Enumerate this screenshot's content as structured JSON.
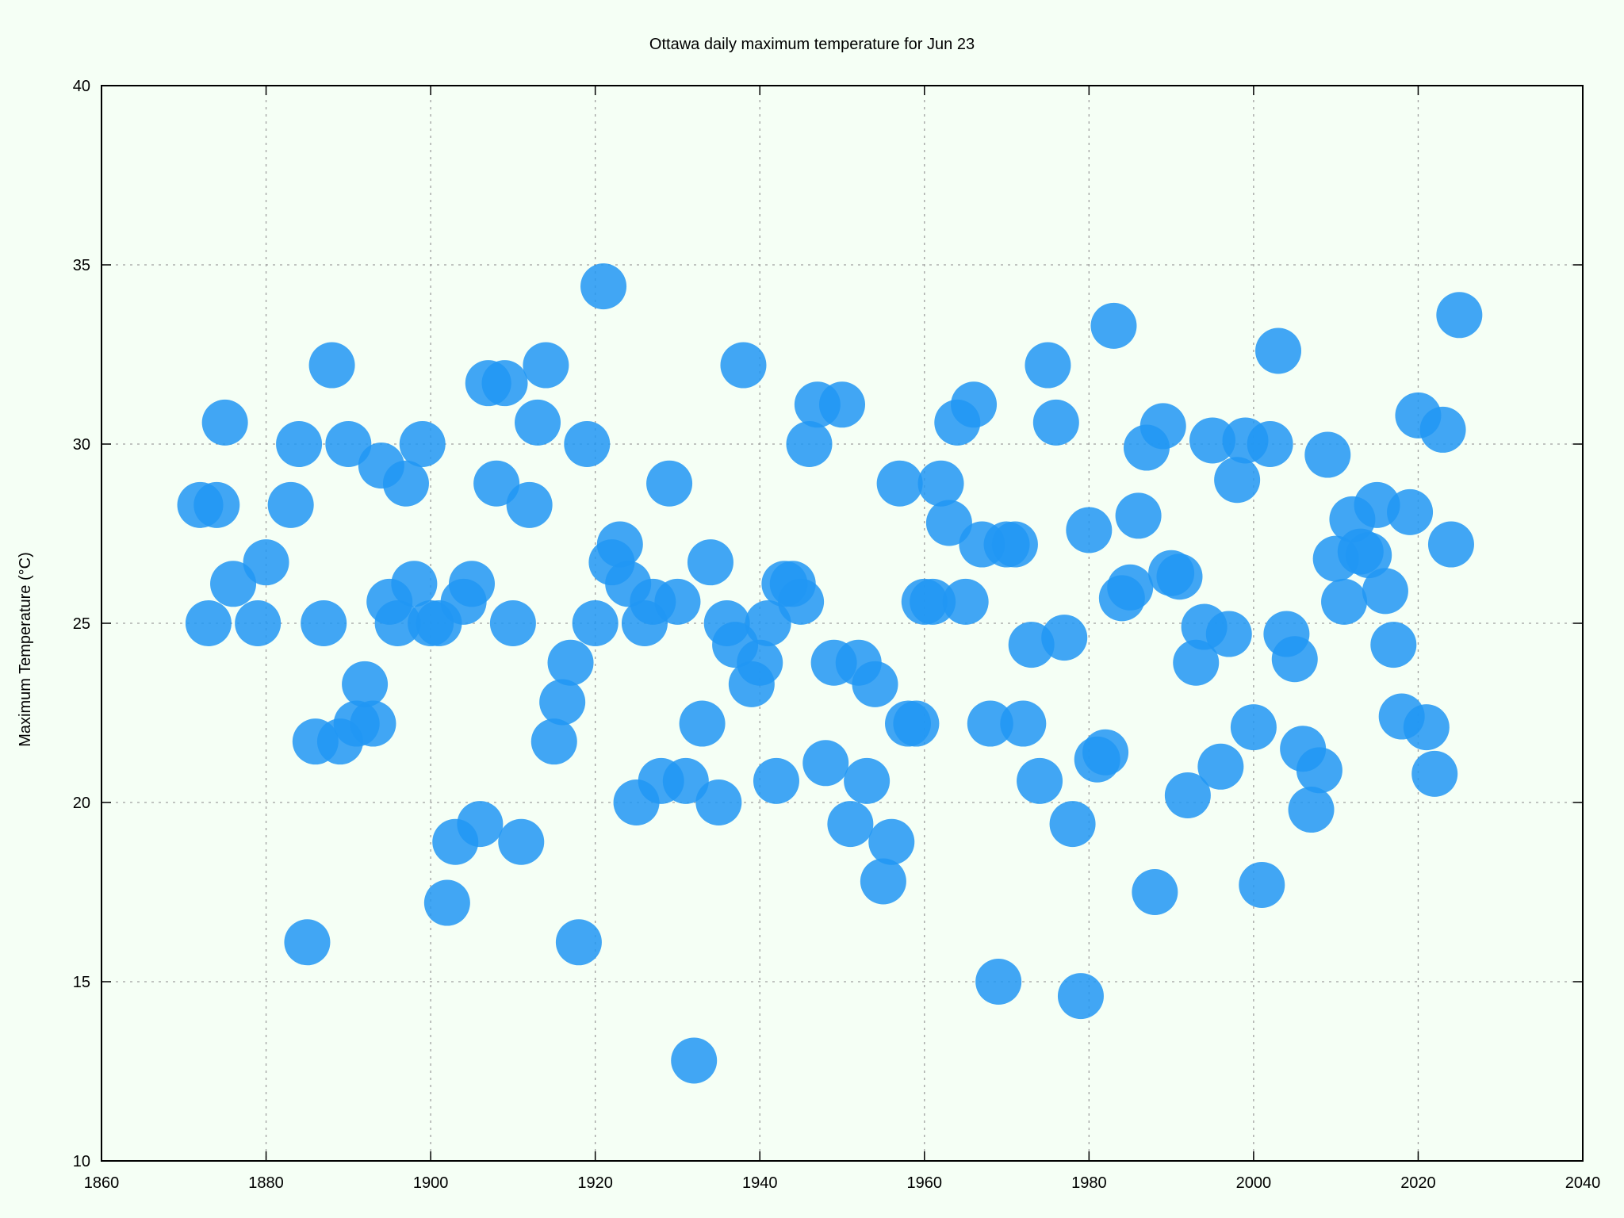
{
  "chart_data": {
    "type": "scatter",
    "title": "Ottawa daily maximum temperature for Jun 23",
    "xlabel": "",
    "ylabel": "Maximum Temperature (°C)",
    "xlim": [
      1860,
      2040
    ],
    "ylim": [
      10,
      40
    ],
    "x_ticks": [
      "1860",
      "1880",
      "1900",
      "1920",
      "1940",
      "1960",
      "1980",
      "2000",
      "2020",
      "2040"
    ],
    "y_ticks": [
      "10",
      "15",
      "20",
      "25",
      "30",
      "35",
      "40"
    ],
    "grid": true,
    "marker_color": "#2196f3",
    "points": [
      [
        1872,
        28.3
      ],
      [
        1873,
        25.0
      ],
      [
        1874,
        28.3
      ],
      [
        1875,
        30.6
      ],
      [
        1876,
        26.1
      ],
      [
        1879,
        25.0
      ],
      [
        1880,
        26.7
      ],
      [
        1883,
        28.3
      ],
      [
        1884,
        30.0
      ],
      [
        1885,
        16.1
      ],
      [
        1886,
        21.7
      ],
      [
        1887,
        25.0
      ],
      [
        1888,
        32.2
      ],
      [
        1889,
        21.7
      ],
      [
        1890,
        30.0
      ],
      [
        1891,
        22.2
      ],
      [
        1892,
        23.3
      ],
      [
        1893,
        22.2
      ],
      [
        1894,
        29.4
      ],
      [
        1895,
        25.6
      ],
      [
        1896,
        25.0
      ],
      [
        1897,
        28.9
      ],
      [
        1898,
        26.1
      ],
      [
        1899,
        30.0
      ],
      [
        1900,
        25.0
      ],
      [
        1901,
        25.0
      ],
      [
        1902,
        17.2
      ],
      [
        1903,
        18.9
      ],
      [
        1904,
        25.6
      ],
      [
        1905,
        26.1
      ],
      [
        1906,
        19.4
      ],
      [
        1907,
        31.7
      ],
      [
        1908,
        28.9
      ],
      [
        1909,
        31.7
      ],
      [
        1910,
        25.0
      ],
      [
        1911,
        18.9
      ],
      [
        1912,
        28.3
      ],
      [
        1913,
        30.6
      ],
      [
        1914,
        32.2
      ],
      [
        1915,
        21.7
      ],
      [
        1916,
        22.8
      ],
      [
        1917,
        23.9
      ],
      [
        1918,
        16.1
      ],
      [
        1919,
        30.0
      ],
      [
        1920,
        25.0
      ],
      [
        1921,
        34.4
      ],
      [
        1922,
        26.7
      ],
      [
        1923,
        27.2
      ],
      [
        1924,
        26.1
      ],
      [
        1925,
        20.0
      ],
      [
        1926,
        25.0
      ],
      [
        1927,
        25.6
      ],
      [
        1928,
        20.6
      ],
      [
        1929,
        28.9
      ],
      [
        1930,
        25.6
      ],
      [
        1931,
        20.6
      ],
      [
        1932,
        12.8
      ],
      [
        1933,
        22.2
      ],
      [
        1934,
        26.7
      ],
      [
        1935,
        20.0
      ],
      [
        1936,
        25.0
      ],
      [
        1937,
        24.4
      ],
      [
        1938,
        32.2
      ],
      [
        1939,
        23.3
      ],
      [
        1940,
        23.9
      ],
      [
        1941,
        25.0
      ],
      [
        1942,
        20.6
      ],
      [
        1943,
        26.1
      ],
      [
        1944,
        26.1
      ],
      [
        1945,
        25.6
      ],
      [
        1946,
        30.0
      ],
      [
        1947,
        31.1
      ],
      [
        1948,
        21.1
      ],
      [
        1949,
        23.9
      ],
      [
        1950,
        31.1
      ],
      [
        1951,
        19.4
      ],
      [
        1952,
        23.9
      ],
      [
        1953,
        20.6
      ],
      [
        1954,
        23.3
      ],
      [
        1955,
        17.8
      ],
      [
        1956,
        18.9
      ],
      [
        1957,
        28.9
      ],
      [
        1958,
        22.2
      ],
      [
        1959,
        22.2
      ],
      [
        1960,
        25.6
      ],
      [
        1961,
        25.6
      ],
      [
        1962,
        28.9
      ],
      [
        1963,
        27.8
      ],
      [
        1964,
        30.6
      ],
      [
        1965,
        25.6
      ],
      [
        1966,
        31.1
      ],
      [
        1967,
        27.2
      ],
      [
        1968,
        22.2
      ],
      [
        1969,
        15.0
      ],
      [
        1970,
        27.2
      ],
      [
        1971,
        27.2
      ],
      [
        1972,
        22.2
      ],
      [
        1973,
        24.4
      ],
      [
        1974,
        20.6
      ],
      [
        1975,
        32.2
      ],
      [
        1976,
        30.6
      ],
      [
        1977,
        24.6
      ],
      [
        1978,
        19.4
      ],
      [
        1979,
        14.6
      ],
      [
        1980,
        27.6
      ],
      [
        1981,
        21.2
      ],
      [
        1982,
        21.4
      ],
      [
        1983,
        33.3
      ],
      [
        1984,
        25.7
      ],
      [
        1985,
        26.0
      ],
      [
        1986,
        28.0
      ],
      [
        1987,
        29.9
      ],
      [
        1988,
        17.5
      ],
      [
        1989,
        30.5
      ],
      [
        1990,
        26.4
      ],
      [
        1991,
        26.3
      ],
      [
        1992,
        20.2
      ],
      [
        1993,
        23.9
      ],
      [
        1994,
        24.9
      ],
      [
        1995,
        30.1
      ],
      [
        1996,
        21.0
      ],
      [
        1997,
        24.7
      ],
      [
        1998,
        29.0
      ],
      [
        1999,
        30.1
      ],
      [
        2000,
        22.1
      ],
      [
        2001,
        17.7
      ],
      [
        2002,
        30.0
      ],
      [
        2003,
        32.6
      ],
      [
        2004,
        24.7
      ],
      [
        2005,
        24.0
      ],
      [
        2006,
        21.5
      ],
      [
        2007,
        19.8
      ],
      [
        2008,
        20.9
      ],
      [
        2009,
        29.7
      ],
      [
        2010,
        26.8
      ],
      [
        2011,
        25.6
      ],
      [
        2012,
        27.9
      ],
      [
        2013,
        27.0
      ],
      [
        2014,
        26.9
      ],
      [
        2015,
        28.3
      ],
      [
        2016,
        25.9
      ],
      [
        2017,
        24.4
      ],
      [
        2018,
        22.4
      ],
      [
        2019,
        28.1
      ],
      [
        2020,
        30.8
      ],
      [
        2021,
        22.1
      ],
      [
        2022,
        20.8
      ],
      [
        2023,
        30.4
      ],
      [
        2024,
        27.2
      ],
      [
        2025,
        33.6
      ]
    ]
  }
}
